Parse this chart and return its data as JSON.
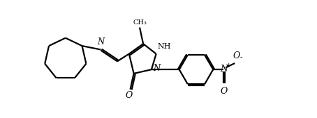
{
  "bg_color": "#ffffff",
  "line_color": "#000000",
  "line_width": 1.6,
  "fig_width": 4.54,
  "fig_height": 1.7,
  "dpi": 100,
  "xlim": [
    0,
    11
  ],
  "ylim": [
    0,
    5
  ]
}
